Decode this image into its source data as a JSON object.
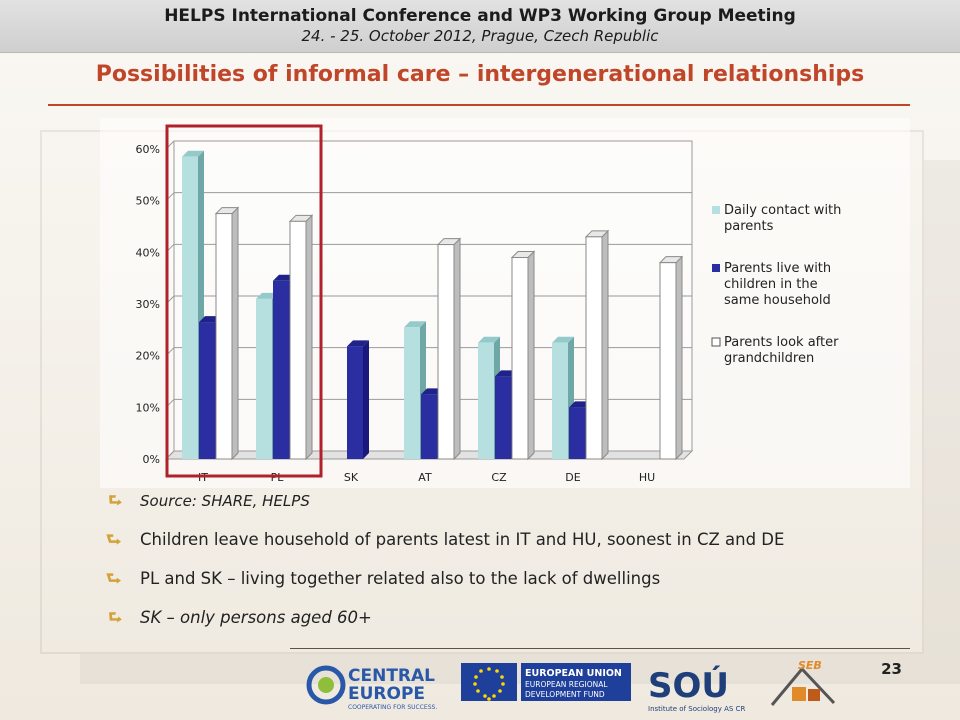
{
  "header": {
    "line1": "HELPS International Conference and WP3 Working Group Meeting",
    "line2": "24. - 25. October 2012, Prague, Czech Republic"
  },
  "slide": {
    "title": "Possibilities of informal care – intergenerational relationships",
    "page_number": "23"
  },
  "chart_data": {
    "type": "bar",
    "categories": [
      "IT",
      "PL",
      "SK",
      "AT",
      "CZ",
      "DE",
      "HU"
    ],
    "series": [
      {
        "name": "Daily contact with parents",
        "values": [
          58.5,
          31,
          null,
          25.5,
          22.5,
          22.5,
          null
        ],
        "color": "#b6e0e0"
      },
      {
        "name": "Parents live with children in the same household",
        "values": [
          26.5,
          34.5,
          21.8,
          12.5,
          16,
          10,
          null
        ],
        "color": "#2a2ea0"
      },
      {
        "name": "Parents look after grandchildren",
        "values": [
          47.5,
          46,
          null,
          41.5,
          39,
          43,
          38
        ],
        "color": "#ffffff"
      }
    ],
    "y_ticks": [
      "0%",
      "10%",
      "20%",
      "30%",
      "40%",
      "50%",
      "60%"
    ],
    "ylim": [
      0,
      60
    ],
    "legend_position": "right",
    "grid": true,
    "highlight": "IT, PL"
  },
  "bullets": [
    {
      "text": "Source: SHARE, HELPS",
      "style": "source"
    },
    {
      "text": "Children leave household of parents latest in IT and HU, soonest in CZ and DE",
      "style": "normal"
    },
    {
      "text": "PL and SK – living together related also to the lack of dwellings",
      "style": "normal"
    },
    {
      "text": "SK – only persons aged 60+",
      "style": "italic"
    }
  ],
  "logos": {
    "central_europe_line1": "CENTRAL",
    "central_europe_line2": "EUROPE",
    "central_europe_tagline": "COOPERATING FOR SUCCESS.",
    "eu_line1": "EUROPEAN UNION",
    "eu_line2": "EUROPEAN REGIONAL",
    "eu_line3": "DEVELOPMENT FUND",
    "sou_name": "SOÚ",
    "sou_caption": "Institute of Sociology AS CR",
    "seb_name": "SEB"
  }
}
